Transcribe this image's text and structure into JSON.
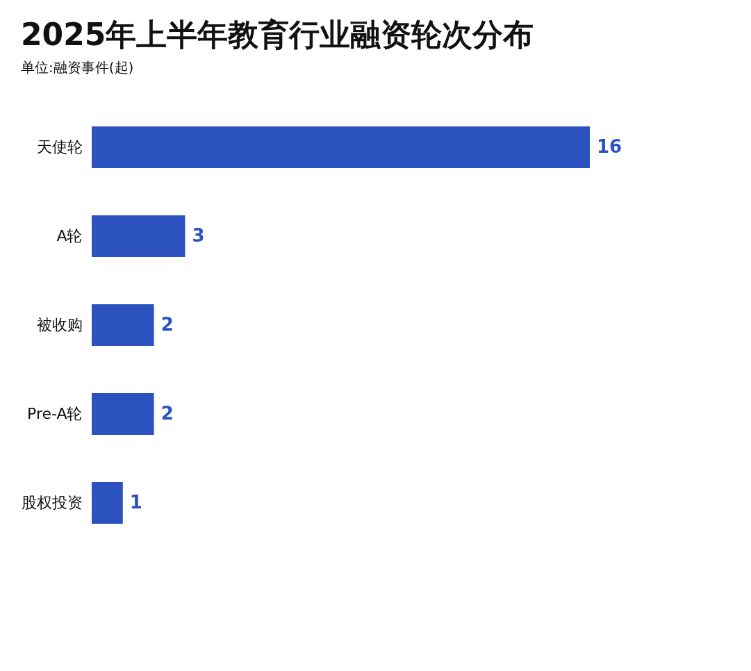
{
  "chart_data": {
    "type": "bar",
    "orientation": "horizontal",
    "title": "2025年上半年教育行业融资轮次分布",
    "subtitle": "单位:融资事件(起)",
    "categories": [
      "天使轮",
      "A轮",
      "被收购",
      "Pre-A轮",
      "股权投资"
    ],
    "values": [
      16,
      3,
      2,
      2,
      1
    ],
    "color": "#2c52c0",
    "data_labels": true
  }
}
